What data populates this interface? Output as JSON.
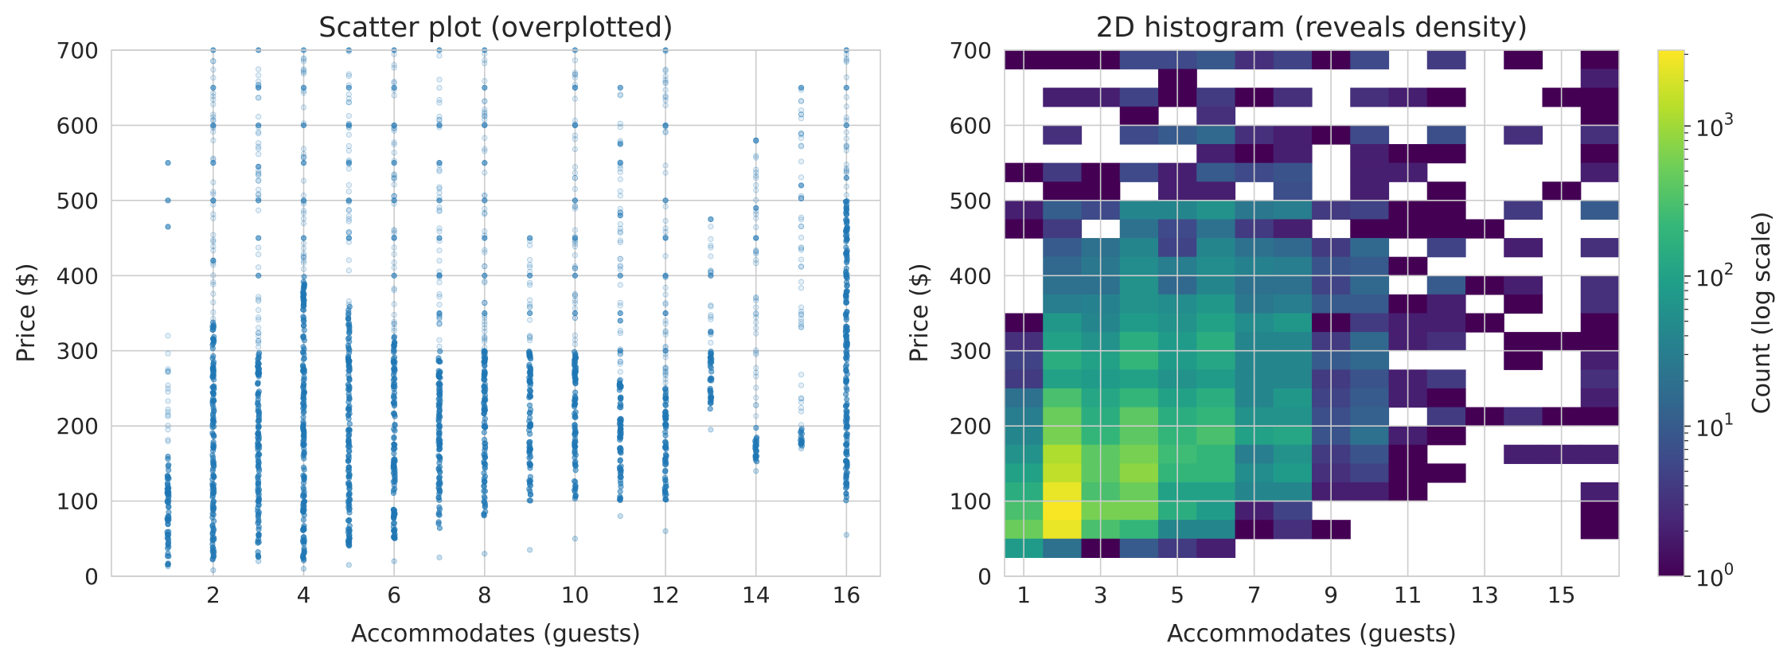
{
  "chart_data": [
    {
      "type": "scatter",
      "title": "Scatter plot (overplotted)",
      "xlabel": "Accommodates (guests)",
      "ylabel": "Price ($)",
      "xlim": [
        -0.25,
        16.75
      ],
      "ylim": [
        0,
        700
      ],
      "xticks": [
        2,
        4,
        6,
        8,
        10,
        12,
        14,
        16
      ],
      "yticks": [
        0,
        100,
        200,
        300,
        400,
        500,
        600,
        700
      ],
      "grid": true,
      "color": "#1f77b4",
      "point_alpha": 0.12,
      "series": [
        {
          "x": 1,
          "min": 13,
          "max": 325,
          "dense_min": 14,
          "dense_max": 160,
          "outliers": [
            465,
            500,
            550
          ]
        },
        {
          "x": 2,
          "min": 8,
          "max": 700,
          "dense_min": 18,
          "dense_max": 340,
          "outliers": [
            420,
            500,
            550,
            600,
            650,
            700
          ]
        },
        {
          "x": 3,
          "min": 20,
          "max": 700,
          "dense_min": 25,
          "dense_max": 300,
          "outliers": [
            400,
            450,
            500,
            545,
            600,
            650,
            700
          ]
        },
        {
          "x": 4,
          "min": 10,
          "max": 700,
          "dense_min": 20,
          "dense_max": 400,
          "outliers": [
            450,
            500,
            550,
            600,
            650,
            700
          ]
        },
        {
          "x": 5,
          "min": 15,
          "max": 700,
          "dense_min": 40,
          "dense_max": 360,
          "outliers": [
            450,
            500,
            550,
            600,
            650,
            700
          ]
        },
        {
          "x": 6,
          "min": 20,
          "max": 700,
          "dense_min": 50,
          "dense_max": 320,
          "outliers": [
            400,
            450,
            500,
            550,
            600,
            650,
            700
          ]
        },
        {
          "x": 7,
          "min": 25,
          "max": 700,
          "dense_min": 60,
          "dense_max": 300,
          "outliers": [
            350,
            400,
            450,
            500,
            550,
            600,
            700
          ]
        },
        {
          "x": 8,
          "min": 30,
          "max": 700,
          "dense_min": 80,
          "dense_max": 300,
          "outliers": [
            350,
            400,
            450,
            500,
            550,
            600,
            650,
            700
          ]
        },
        {
          "x": 9,
          "min": 35,
          "max": 450,
          "dense_min": 100,
          "dense_max": 300,
          "outliers": [
            350,
            400,
            450
          ]
        },
        {
          "x": 10,
          "min": 50,
          "max": 700,
          "dense_min": 100,
          "dense_max": 300,
          "outliers": [
            350,
            400,
            450,
            500,
            600,
            650,
            700
          ]
        },
        {
          "x": 11,
          "min": 80,
          "max": 650,
          "dense_min": 100,
          "dense_max": 260,
          "outliers": [
            300,
            340,
            350,
            400,
            480,
            550,
            575,
            650
          ]
        },
        {
          "x": 12,
          "min": 60,
          "max": 700,
          "dense_min": 100,
          "dense_max": 250,
          "outliers": [
            300,
            350,
            400,
            450,
            500,
            600,
            700
          ]
        },
        {
          "x": 13,
          "min": 195,
          "max": 475,
          "dense_min": 220,
          "dense_max": 300,
          "outliers": [
            325,
            400,
            475
          ]
        },
        {
          "x": 14,
          "min": 140,
          "max": 580,
          "dense_min": 150,
          "dense_max": 200,
          "outliers": [
            450,
            490,
            580
          ]
        },
        {
          "x": 15,
          "min": 170,
          "max": 650,
          "dense_min": 170,
          "dense_max": 200,
          "outliers": [
            520,
            650
          ]
        },
        {
          "x": 16,
          "min": 55,
          "max": 700,
          "dense_min": 100,
          "dense_max": 500,
          "outliers": [
            530,
            600,
            650,
            700
          ]
        }
      ]
    },
    {
      "type": "heatmap",
      "title": "2D histogram (reveals density)",
      "xlabel": "Accommodates (guests)",
      "ylabel": "Price ($)",
      "xlim": [
        0.5,
        16.5
      ],
      "ylim": [
        0,
        700
      ],
      "xticks": [
        1,
        3,
        5,
        7,
        9,
        11,
        13,
        15
      ],
      "yticks": [
        0,
        100,
        200,
        300,
        400,
        500,
        600,
        700
      ],
      "grid": true,
      "x_bin_edges": [
        0.5,
        16.5,
        16
      ],
      "y_bin_edges": [
        0,
        700,
        28
      ],
      "colorbar": {
        "label": "Count (log scale)",
        "scale": "log",
        "range": [
          1,
          3200
        ],
        "ticks": [
          1,
          10,
          100,
          1000
        ],
        "tick_labels": [
          "10",
          "10",
          "10",
          "10"
        ],
        "tick_exponents": [
          "0",
          "1",
          "2",
          "3"
        ],
        "colormap": "viridis"
      },
      "rows_top_to_bottom": [
        [
          1,
          1,
          1,
          6,
          6,
          9,
          3,
          5,
          1,
          6,
          0,
          4,
          0,
          1,
          0,
          1
        ],
        [
          0,
          0,
          0,
          0,
          1,
          0,
          0,
          0,
          0,
          0,
          0,
          0,
          0,
          0,
          0,
          2
        ],
        [
          0,
          2,
          2,
          5,
          1,
          4,
          1,
          3,
          0,
          3,
          2,
          1,
          0,
          0,
          1,
          1
        ],
        [
          0,
          0,
          0,
          1,
          0,
          3,
          0,
          0,
          0,
          0,
          0,
          0,
          0,
          0,
          0,
          1
        ],
        [
          0,
          3,
          0,
          6,
          10,
          15,
          3,
          2,
          1,
          6,
          0,
          7,
          0,
          3,
          0,
          3
        ],
        [
          0,
          0,
          0,
          0,
          0,
          2,
          1,
          2,
          0,
          2,
          1,
          1,
          0,
          0,
          0,
          1
        ],
        [
          1,
          4,
          1,
          6,
          2,
          10,
          6,
          8,
          0,
          2,
          2,
          0,
          0,
          0,
          0,
          2
        ],
        [
          0,
          1,
          1,
          0,
          2,
          2,
          0,
          7,
          0,
          2,
          0,
          1,
          0,
          0,
          1,
          0
        ],
        [
          2,
          11,
          6,
          40,
          40,
          60,
          25,
          30,
          4,
          5,
          1,
          1,
          0,
          4,
          0,
          10
        ],
        [
          1,
          4,
          0,
          20,
          6,
          20,
          4,
          2,
          0,
          1,
          1,
          1,
          1,
          0,
          0,
          0
        ],
        [
          0,
          10,
          20,
          40,
          5,
          40,
          20,
          15,
          4,
          15,
          0,
          5,
          0,
          2,
          0,
          3
        ],
        [
          0,
          15,
          25,
          50,
          30,
          50,
          35,
          30,
          8,
          10,
          1,
          0,
          0,
          0,
          0,
          0
        ],
        [
          0,
          20,
          20,
          60,
          15,
          40,
          20,
          20,
          5,
          15,
          0,
          10,
          1,
          2,
          0,
          3
        ],
        [
          0,
          30,
          35,
          60,
          50,
          70,
          25,
          30,
          10,
          10,
          1,
          2,
          0,
          1,
          0,
          3
        ],
        [
          1,
          70,
          40,
          80,
          60,
          100,
          50,
          70,
          1,
          4,
          2,
          2,
          1,
          0,
          0,
          1
        ],
        [
          3,
          100,
          60,
          150,
          80,
          150,
          40,
          40,
          4,
          15,
          2,
          3,
          0,
          1,
          1,
          1
        ],
        [
          5,
          150,
          100,
          200,
          80,
          120,
          40,
          40,
          10,
          15,
          0,
          0,
          0,
          1,
          0,
          2
        ],
        [
          4,
          100,
          80,
          100,
          60,
          80,
          40,
          40,
          4,
          8,
          2,
          4,
          0,
          0,
          0,
          3
        ],
        [
          20,
          300,
          120,
          200,
          100,
          150,
          40,
          70,
          5,
          10,
          2,
          1,
          0,
          0,
          0,
          2
        ],
        [
          30,
          500,
          150,
          400,
          150,
          200,
          60,
          60,
          7,
          12,
          0,
          4,
          1,
          3,
          1,
          1
        ],
        [
          40,
          600,
          200,
          400,
          200,
          300,
          100,
          120,
          8,
          20,
          2,
          1,
          0,
          0,
          0,
          0
        ],
        [
          60,
          1200,
          400,
          600,
          250,
          200,
          30,
          60,
          4,
          8,
          1,
          0,
          0,
          2,
          2,
          2
        ],
        [
          100,
          1500,
          400,
          800,
          200,
          200,
          50,
          80,
          3,
          5,
          1,
          1,
          0,
          0,
          0,
          0
        ],
        [
          150,
          2500,
          300,
          500,
          100,
          100,
          40,
          40,
          2,
          2,
          1,
          0,
          0,
          0,
          0,
          2
        ],
        [
          300,
          3000,
          600,
          600,
          150,
          80,
          2,
          5,
          0,
          0,
          0,
          0,
          0,
          0,
          0,
          1
        ],
        [
          500,
          2500,
          300,
          200,
          40,
          40,
          1,
          3,
          1,
          0,
          0,
          0,
          0,
          0,
          0,
          1
        ],
        [
          80,
          20,
          1,
          10,
          4,
          2,
          0,
          0,
          0,
          0,
          0,
          0,
          0,
          0,
          0,
          0
        ],
        [
          0,
          0,
          0,
          0,
          0,
          0,
          0,
          0,
          0,
          0,
          0,
          0,
          0,
          0,
          0,
          0
        ]
      ]
    }
  ]
}
